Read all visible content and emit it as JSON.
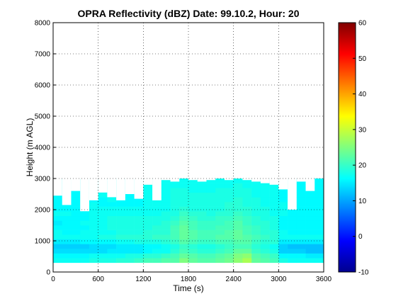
{
  "chart_data": [
    {
      "type": "heatmap",
      "title": "OPRA Reflectivity (dBZ)  Date: 99.10.2, Hour: 20",
      "xlabel": "Time (s)",
      "ylabel": "Height (m AGL)",
      "xlim": [
        0,
        3600
      ],
      "ylim": [
        0,
        8000
      ],
      "x_ticks": [
        "0",
        "600",
        "1200",
        "1800",
        "2400",
        "3000",
        "3600"
      ],
      "y_ticks": [
        "0",
        "1000",
        "2000",
        "3000",
        "4000",
        "5000",
        "6000",
        "7000",
        "8000"
      ],
      "grid": true,
      "colormap": "jet",
      "time_bins": [
        0,
        120,
        240,
        360,
        480,
        600,
        720,
        840,
        960,
        1080,
        1200,
        1320,
        1440,
        1560,
        1680,
        1800,
        1920,
        2040,
        2160,
        2280,
        2400,
        2520,
        2640,
        2760,
        2880,
        3000,
        3120,
        3240,
        3360,
        3480
      ],
      "height_bins": [
        300,
        450,
        600,
        750,
        900,
        1050,
        1200,
        1350,
        1500,
        1650,
        1800,
        1950,
        2100,
        2250,
        2400,
        2550,
        2700,
        2850
      ],
      "echo_top_m": [
        2450,
        2150,
        2600,
        1950,
        2300,
        2550,
        2400,
        2300,
        2500,
        2350,
        2800,
        2300,
        2950,
        2900,
        3000,
        2950,
        2900,
        2950,
        3000,
        2950,
        3000,
        2950,
        2900,
        2850,
        2800,
        2650,
        2000,
        2900,
        2600,
        3000
      ],
      "reflectivity_dbz": [
        [
          17,
          16,
          14,
          13,
          15,
          17,
          17,
          16,
          15,
          16,
          17,
          16,
          16,
          16,
          16,
          16,
          16,
          16
        ],
        [
          17,
          16,
          14,
          13,
          15,
          17,
          16,
          16,
          16,
          16,
          17,
          16,
          16,
          17,
          17,
          17,
          16,
          16
        ],
        [
          17,
          16,
          14,
          13,
          15,
          17,
          16,
          16,
          16,
          16,
          16,
          16,
          16,
          16,
          16,
          16,
          16,
          16
        ],
        [
          17,
          16,
          14,
          13,
          16,
          17,
          17,
          16,
          17,
          16,
          16,
          17,
          17,
          16,
          16,
          16,
          16,
          16
        ],
        [
          18,
          17,
          14,
          14,
          16,
          17,
          17,
          17,
          17,
          17,
          17,
          17,
          17,
          16,
          16,
          16,
          16,
          16
        ],
        [
          18,
          17,
          14,
          14,
          16,
          18,
          17,
          17,
          17,
          17,
          17,
          17,
          16,
          16,
          17,
          16,
          16,
          16
        ],
        [
          18,
          17,
          15,
          14,
          16,
          18,
          17,
          18,
          18,
          18,
          17,
          17,
          16,
          17,
          17,
          17,
          17,
          16
        ],
        [
          19,
          17,
          15,
          15,
          17,
          19,
          18,
          18,
          18,
          18,
          17,
          17,
          16,
          16,
          16,
          17,
          17,
          17
        ],
        [
          19,
          18,
          15,
          15,
          17,
          19,
          18,
          18,
          18,
          18,
          17,
          17,
          16,
          16,
          16,
          17,
          17,
          17
        ],
        [
          20,
          18,
          15,
          15,
          18,
          19,
          18,
          18,
          18,
          18,
          17,
          17,
          16,
          16,
          17,
          17,
          17,
          17
        ],
        [
          21,
          19,
          16,
          16,
          18,
          19,
          19,
          18,
          18,
          18,
          17,
          17,
          17,
          17,
          17,
          17,
          17,
          17
        ],
        [
          21,
          19,
          17,
          16,
          18,
          20,
          19,
          19,
          18,
          18,
          17,
          17,
          17,
          17,
          17,
          17,
          17,
          17
        ],
        [
          22,
          20,
          17,
          17,
          19,
          20,
          19,
          19,
          19,
          18,
          18,
          17,
          17,
          17,
          17,
          17,
          17,
          17
        ],
        [
          22,
          21,
          19,
          18,
          20,
          21,
          21,
          21,
          20,
          19,
          18,
          18,
          18,
          18,
          18,
          18,
          17,
          17
        ],
        [
          25,
          23,
          21,
          20,
          22,
          23,
          23,
          23,
          22,
          21,
          20,
          19,
          18,
          18,
          18,
          18,
          17,
          17
        ],
        [
          23,
          22,
          20,
          19,
          21,
          22,
          22,
          21,
          21,
          20,
          19,
          18,
          18,
          18,
          18,
          17,
          17,
          17
        ],
        [
          22,
          21,
          19,
          18,
          20,
          21,
          21,
          20,
          20,
          19,
          19,
          18,
          18,
          18,
          18,
          17,
          17,
          17
        ],
        [
          22,
          21,
          19,
          18,
          20,
          21,
          21,
          20,
          20,
          19,
          18,
          18,
          18,
          18,
          18,
          17,
          17,
          17
        ],
        [
          23,
          22,
          20,
          19,
          21,
          22,
          21,
          21,
          20,
          20,
          19,
          18,
          18,
          18,
          18,
          18,
          17,
          17
        ],
        [
          24,
          23,
          21,
          20,
          21,
          22,
          22,
          21,
          21,
          20,
          19,
          19,
          19,
          18,
          18,
          18,
          17,
          17
        ],
        [
          26,
          25,
          23,
          21,
          22,
          23,
          23,
          22,
          22,
          21,
          20,
          19,
          19,
          19,
          18,
          18,
          18,
          17
        ],
        [
          28,
          26,
          23,
          21,
          22,
          22,
          21,
          21,
          20,
          20,
          19,
          19,
          18,
          18,
          18,
          18,
          17,
          17
        ],
        [
          23,
          22,
          20,
          19,
          20,
          21,
          20,
          20,
          19,
          19,
          18,
          18,
          18,
          18,
          17,
          17,
          17,
          17
        ],
        [
          22,
          21,
          19,
          18,
          19,
          20,
          19,
          19,
          19,
          18,
          18,
          18,
          17,
          17,
          17,
          17,
          17,
          17
        ],
        [
          21,
          20,
          18,
          17,
          19,
          19,
          19,
          18,
          18,
          18,
          17,
          17,
          17,
          17,
          17,
          17,
          17,
          16
        ],
        [
          18,
          16,
          13,
          13,
          15,
          17,
          17,
          16,
          16,
          16,
          17,
          17,
          17,
          16,
          16,
          16,
          16,
          16
        ],
        [
          17,
          16,
          13,
          12,
          15,
          17,
          16,
          16,
          16,
          16,
          16,
          16,
          16,
          16,
          16,
          16,
          16,
          16
        ],
        [
          17,
          16,
          13,
          12,
          15,
          17,
          16,
          16,
          16,
          16,
          16,
          16,
          16,
          16,
          16,
          16,
          16,
          16
        ],
        [
          17,
          15,
          12,
          12,
          15,
          17,
          16,
          16,
          16,
          16,
          16,
          16,
          16,
          16,
          16,
          16,
          16,
          16
        ],
        [
          17,
          15,
          12,
          12,
          15,
          17,
          16,
          16,
          16,
          16,
          16,
          16,
          16,
          16,
          16,
          16,
          16,
          16
        ]
      ]
    },
    {
      "type": "colorbar",
      "colormap": "jet",
      "ylim": [
        -10,
        60
      ],
      "ticks": [
        "-10",
        "0",
        "10",
        "20",
        "30",
        "40",
        "50",
        "60"
      ]
    }
  ]
}
